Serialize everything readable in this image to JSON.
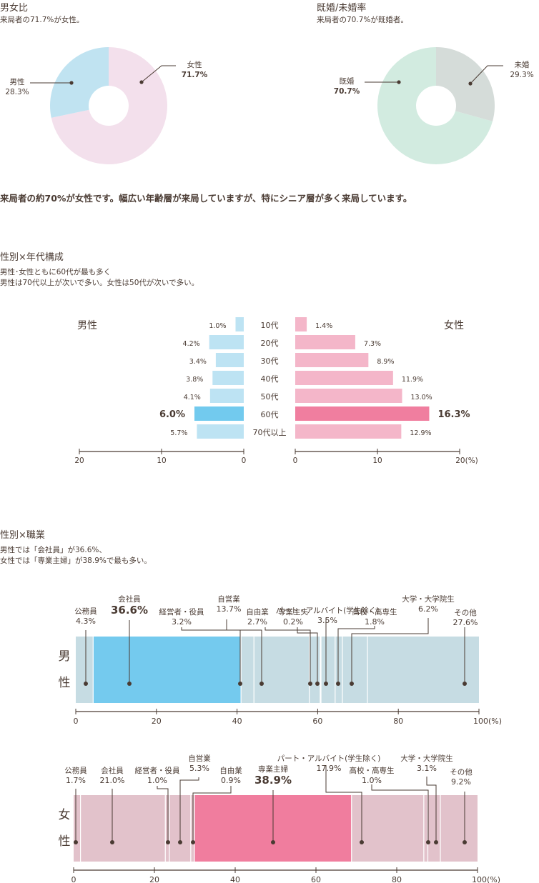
{
  "gender": {
    "title": "男女比",
    "subtitle": "来局者の71.7%が女性。",
    "chart_data": {
      "type": "pie",
      "slices": [
        {
          "label": "女性",
          "value": 71.7,
          "value_label": "71.7%",
          "color": "#f3e0ec",
          "emph": true
        },
        {
          "label": "男性",
          "value": 28.3,
          "value_label": "28.3%",
          "color": "#c0e3f1",
          "emph": false
        }
      ]
    }
  },
  "marital": {
    "title": "既婚/未婚率",
    "subtitle": "来局者の70.7%が既婚者。",
    "chart_data": {
      "type": "pie",
      "slices": [
        {
          "label": "未婚",
          "value": 29.3,
          "value_label": "29.3%",
          "color": "#d5dcd9",
          "emph": false
        },
        {
          "label": "既婚",
          "value": 70.7,
          "value_label": "70.7%",
          "color": "#d2ebe0",
          "emph": true
        }
      ]
    }
  },
  "summary": "来局者の約70%が女性です。幅広い年齢層が来局していますが、特にシニア層が多く来局しています。",
  "age": {
    "title": "性別×年代構成",
    "subtitle1": "男性･女性ともに60代が最も多く",
    "subtitle2": "男性は70代以上が次いで多い。女性は50代が次いで多い。",
    "chart_data": {
      "type": "bar",
      "male_label": "男性",
      "female_label": "女性",
      "categories": [
        "10代",
        "20代",
        "30代",
        "40代",
        "50代",
        "60代",
        "70代以上"
      ],
      "male": [
        1.0,
        4.2,
        3.4,
        3.8,
        4.1,
        6.0,
        5.7
      ],
      "female": [
        1.4,
        7.3,
        8.9,
        11.9,
        13.0,
        16.3,
        12.9
      ],
      "male_labels": [
        "1.0%",
        "4.2%",
        "3.4%",
        "3.8%",
        "4.1%",
        "6.0%",
        "5.7%"
      ],
      "female_labels": [
        "1.4%",
        "7.3%",
        "8.9%",
        "11.9%",
        "13.0%",
        "16.3%",
        "12.9%"
      ],
      "highlight_index": 5,
      "male_color": "#bde3f3",
      "male_highlight": "#72caee",
      "female_color": "#f4b6c9",
      "female_highlight": "#f07e9f",
      "male_axis_ticks": [
        "20",
        "10",
        "0"
      ],
      "female_axis_ticks": [
        "0",
        "10",
        "20(%)"
      ],
      "xlim": [
        0,
        20
      ]
    }
  },
  "job": {
    "title": "性別×職業",
    "subtitle1": "男性では「会社員」が36.6%、",
    "subtitle2": "女性では「専業主婦」が38.9%で最も多い。",
    "axis_ticks": [
      "0",
      "20",
      "40",
      "60",
      "80",
      "100(%)"
    ],
    "chart_data": {
      "type": "bar",
      "stacked": true,
      "categories": [
        "男性",
        "女性"
      ],
      "series": [
        {
          "row_label": [
            "男",
            "性"
          ],
          "bar_color": "#c6dce3",
          "highlight_color": "#74caee",
          "segments": [
            {
              "label": "公務員",
              "value_label": "4.3%",
              "value": 4.3
            },
            {
              "label": "会社員",
              "value_label": "36.6%",
              "value": 36.6,
              "highlight": true
            },
            {
              "label": "経営者・役員",
              "value_label": "3.2%",
              "value": 3.2
            },
            {
              "label": "自営業",
              "value_label": "13.7%",
              "value": 13.7
            },
            {
              "label": "自由業",
              "value_label": "2.7%",
              "value": 2.7
            },
            {
              "label": "専業主夫",
              "value_label": "0.2%",
              "value": 0.2
            },
            {
              "label": "パート・アルバイト(学生除く)",
              "value_label": "3.5%",
              "value": 3.5
            },
            {
              "label": "高校・高専生",
              "value_label": "1.8%",
              "value": 1.8
            },
            {
              "label": "大学・大学院生",
              "value_label": "6.2%",
              "value": 6.2
            },
            {
              "label": "その他",
              "value_label": "27.6%",
              "value": 27.6
            }
          ]
        },
        {
          "row_label": [
            "女",
            "性"
          ],
          "bar_color": "#e2c2cb",
          "highlight_color": "#f07d9e",
          "segments": [
            {
              "label": "公務員",
              "value_label": "1.7%",
              "value": 1.7
            },
            {
              "label": "会社員",
              "value_label": "21.0%",
              "value": 21.0
            },
            {
              "label": "経営者・役員",
              "value_label": "1.0%",
              "value": 1.0
            },
            {
              "label": "自営業",
              "value_label": "5.3%",
              "value": 5.3
            },
            {
              "label": "自由業",
              "value_label": "0.9%",
              "value": 0.9
            },
            {
              "label": "専業主婦",
              "value_label": "38.9%",
              "value": 38.9,
              "highlight": true
            },
            {
              "label": "パート・アルバイト(学生除く)",
              "value_label": "17.9%",
              "value": 17.9
            },
            {
              "label": "高校・高専生",
              "value_label": "1.0%",
              "value": 1.0
            },
            {
              "label": "大学・大学院生",
              "value_label": "3.1%",
              "value": 3.1
            },
            {
              "label": "その他",
              "value_label": "9.2%",
              "value": 9.2
            }
          ]
        }
      ]
    }
  }
}
